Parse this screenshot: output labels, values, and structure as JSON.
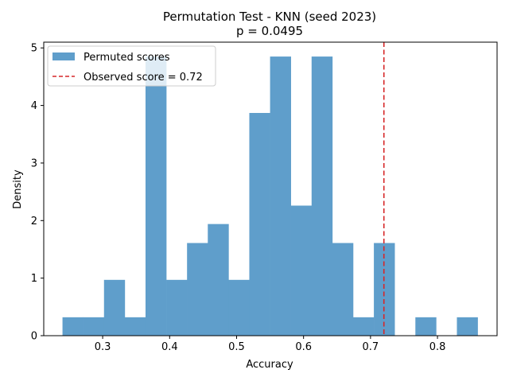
{
  "chart_data": {
    "type": "bar",
    "title": "Permutation Test - KNN (seed 2023)",
    "subtitle": "p = 0.0495",
    "xlabel": "Accuracy",
    "ylabel": "Density",
    "xlim": [
      0.212,
      0.889
    ],
    "ylim": [
      0,
      5.1
    ],
    "xticks": [
      0.3,
      0.4,
      0.5,
      0.6,
      0.7,
      0.8
    ],
    "xtick_labels": [
      "0.3",
      "0.4",
      "0.5",
      "0.6",
      "0.7",
      "0.8"
    ],
    "yticks": [
      0,
      1,
      2,
      3,
      4,
      5
    ],
    "ytick_labels": [
      "0",
      "1",
      "2",
      "3",
      "4",
      "5"
    ],
    "histogram": {
      "name": "Permuted scores",
      "color": "#5f9ecb",
      "bin_edges": [
        0.24,
        0.271,
        0.302,
        0.333,
        0.364,
        0.395,
        0.426,
        0.457,
        0.488,
        0.519,
        0.55,
        0.581,
        0.612,
        0.643,
        0.674,
        0.705,
        0.736,
        0.767,
        0.798,
        0.829,
        0.86
      ],
      "values": [
        0.32,
        0.32,
        0.97,
        0.32,
        4.85,
        0.97,
        1.61,
        1.94,
        0.97,
        3.87,
        4.85,
        2.26,
        4.85,
        1.61,
        0.32,
        1.61,
        0,
        0.32,
        0,
        0.32
      ]
    },
    "observed_line": {
      "name": "Observed score = 0.72",
      "x": 0.72,
      "color": "#d62728",
      "style": "dashed"
    },
    "legend": {
      "placement": "top-left",
      "entries": [
        "Permuted scores",
        "Observed score = 0.72"
      ]
    },
    "grid": false
  }
}
